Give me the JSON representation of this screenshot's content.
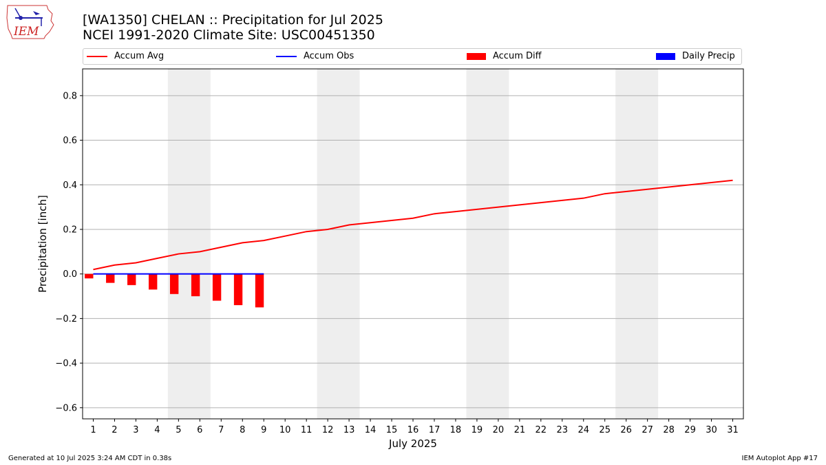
{
  "title": {
    "line1": "[WA1350] CHELAN :: Precipitation for Jul 2025",
    "line2": "NCEI 1991-2020 Climate Site: USC00451350"
  },
  "logo": {
    "text": "IEM"
  },
  "legend": {
    "placement": "top, horizontal",
    "items": [
      {
        "label": "Accum Avg",
        "kind": "line",
        "color": "#ff0000"
      },
      {
        "label": "Accum Obs",
        "kind": "line",
        "color": "#0000ff"
      },
      {
        "label": "Accum Diff",
        "kind": "bar",
        "color": "#ff0000"
      },
      {
        "label": "Daily Precip",
        "kind": "bar",
        "color": "#0000ff"
      }
    ]
  },
  "footer": {
    "left": "Generated at 10 Jul 2025 3:24 AM CDT in 0.38s",
    "right": "IEM Autoplot App #17"
  },
  "chart_data": {
    "type": "line",
    "xlabel": "July 2025",
    "ylabel": "Precipitation [inch]",
    "xlim": [
      0.5,
      31.5
    ],
    "ylim": [
      -0.65,
      0.92
    ],
    "yticks": [
      -0.6,
      -0.4,
      -0.2,
      0.0,
      0.2,
      0.4,
      0.6,
      0.8
    ],
    "ytick_labels": [
      "−0.6",
      "−0.4",
      "−0.2",
      "0.0",
      "0.2",
      "0.4",
      "0.6",
      "0.8"
    ],
    "x": [
      1,
      2,
      3,
      4,
      5,
      6,
      7,
      8,
      9,
      10,
      11,
      12,
      13,
      14,
      15,
      16,
      17,
      18,
      19,
      20,
      21,
      22,
      23,
      24,
      25,
      26,
      27,
      28,
      29,
      30,
      31
    ],
    "xtick_labels": [
      "1",
      "2",
      "3",
      "4",
      "5",
      "6",
      "7",
      "8",
      "9",
      "10",
      "11",
      "12",
      "13",
      "14",
      "15",
      "16",
      "17",
      "18",
      "19",
      "20",
      "21",
      "22",
      "23",
      "24",
      "25",
      "26",
      "27",
      "28",
      "29",
      "30",
      "31"
    ],
    "grid": "horizontal",
    "weekend_bands": [
      [
        4.5,
        6.5
      ],
      [
        11.5,
        13.5
      ],
      [
        18.5,
        20.5
      ],
      [
        25.5,
        27.5
      ]
    ],
    "series": [
      {
        "name": "Accum Avg",
        "kind": "line",
        "color": "#ff0000",
        "x": [
          1,
          2,
          3,
          4,
          5,
          6,
          7,
          8,
          9,
          10,
          11,
          12,
          13,
          14,
          15,
          16,
          17,
          18,
          19,
          20,
          21,
          22,
          23,
          24,
          25,
          26,
          27,
          28,
          29,
          30,
          31
        ],
        "values": [
          0.02,
          0.04,
          0.05,
          0.07,
          0.09,
          0.1,
          0.12,
          0.14,
          0.15,
          0.17,
          0.19,
          0.2,
          0.22,
          0.23,
          0.24,
          0.25,
          0.27,
          0.28,
          0.29,
          0.3,
          0.31,
          0.32,
          0.33,
          0.34,
          0.36,
          0.37,
          0.38,
          0.39,
          0.4,
          0.41,
          0.42
        ]
      },
      {
        "name": "Accum Obs",
        "kind": "line",
        "color": "#0000ff",
        "x": [
          1,
          2,
          3,
          4,
          5,
          6,
          7,
          8,
          9
        ],
        "values": [
          0,
          0,
          0,
          0,
          0,
          0,
          0,
          0,
          0
        ]
      },
      {
        "name": "Accum Diff",
        "kind": "bar",
        "color": "#ff0000",
        "x": [
          1,
          2,
          3,
          4,
          5,
          6,
          7,
          8,
          9
        ],
        "values": [
          -0.02,
          -0.04,
          -0.05,
          -0.07,
          -0.09,
          -0.1,
          -0.12,
          -0.14,
          -0.15
        ]
      },
      {
        "name": "Daily Precip",
        "kind": "bar",
        "color": "#0000ff",
        "x": [
          1,
          2,
          3,
          4,
          5,
          6,
          7,
          8,
          9
        ],
        "values": [
          0,
          0,
          0,
          0,
          0,
          0,
          0,
          0,
          0
        ]
      }
    ]
  }
}
